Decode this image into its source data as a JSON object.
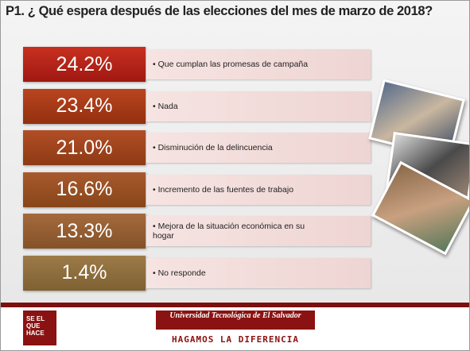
{
  "title": "P1. ¿ Qué espera después de las elecciones del  mes de marzo de 2018?",
  "items": [
    {
      "value": "24.2%",
      "label": "• Que cumplan las promesas de campaña"
    },
    {
      "value": "23.4%",
      "label": "• Nada"
    },
    {
      "value": "21.0%",
      "label": "• Disminución de la delincuencia"
    },
    {
      "value": "16.6%",
      "label": "• Incremento de las fuentes de trabajo"
    },
    {
      "value": "13.3%",
      "label": "• Mejora de la situación económica en su hogar"
    },
    {
      "value": "1.4%",
      "label": "• No responde"
    }
  ],
  "footer": {
    "logo": "SE EL QUE HACE",
    "university": "Universidad Tecnológica de El Salvador",
    "motto": "HAGAMOS LA DIFERENCIA"
  }
}
